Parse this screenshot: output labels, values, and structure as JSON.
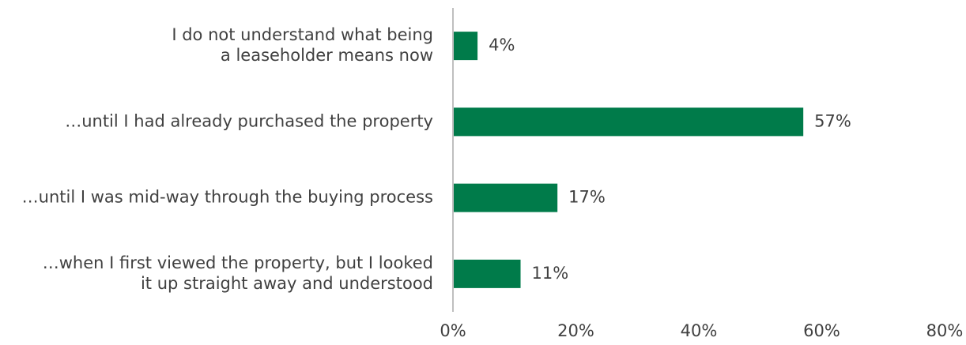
{
  "chart_data": {
    "type": "bar",
    "orientation": "horizontal",
    "categories": [
      [
        "I do not understand what being",
        "a leaseholder means now"
      ],
      [
        "…until I had already purchased the property"
      ],
      [
        "…until I was mid-way through the buying process"
      ],
      [
        "…when I first viewed the property, but I looked",
        "it up straight away and understood"
      ]
    ],
    "values": [
      4,
      57,
      17,
      11
    ],
    "data_labels": [
      "4%",
      "57%",
      "17%",
      "11%"
    ],
    "xlim": [
      0,
      80
    ],
    "x_ticks": [
      0,
      20,
      40,
      60,
      80
    ],
    "x_tick_labels": [
      "0%",
      "20%",
      "40%",
      "60%",
      "80%"
    ],
    "grid": false,
    "colors": {
      "bar": "#007B4A",
      "axis": "#BFBFBF",
      "text": "#404040"
    }
  }
}
